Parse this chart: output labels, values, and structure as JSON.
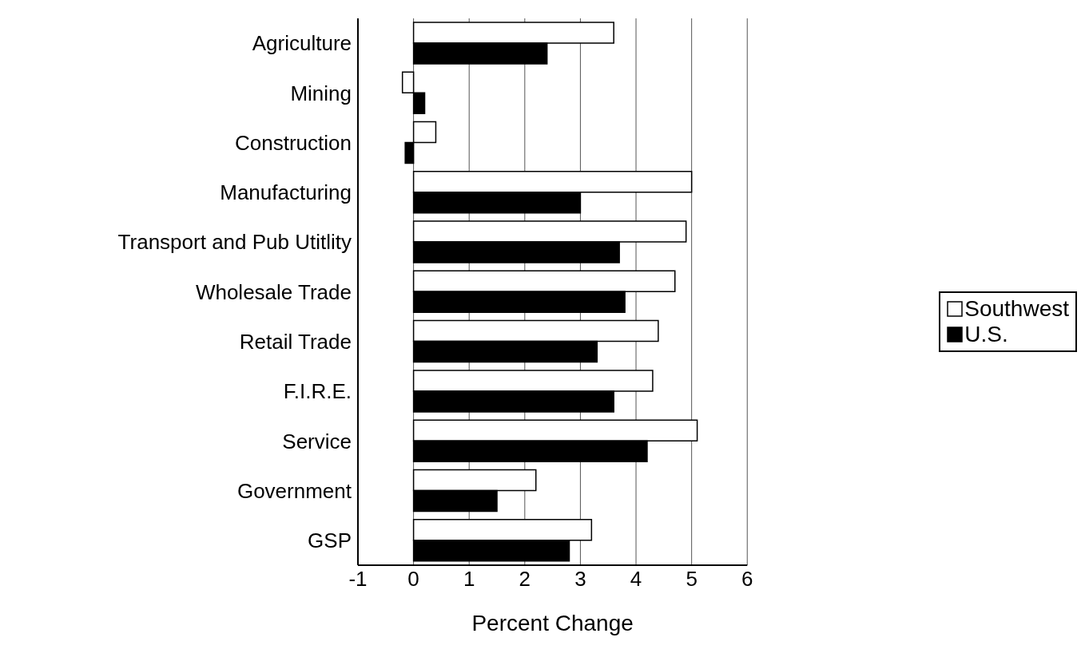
{
  "chart_data": {
    "type": "bar",
    "orientation": "horizontal",
    "xlabel": "Percent Change",
    "categories": [
      "Agriculture",
      "Mining",
      "Construction",
      "Manufacturing",
      "Transport and Pub Utitlity",
      "Wholesale Trade",
      "Retail Trade",
      "F.I.R.E.",
      "Service",
      "Government",
      "GSP"
    ],
    "series": [
      {
        "name": "Southwest",
        "color": "#ffffff",
        "values": [
          3.6,
          -0.2,
          0.4,
          5.0,
          4.9,
          4.7,
          4.4,
          4.3,
          5.1,
          2.2,
          3.2
        ]
      },
      {
        "name": "U.S.",
        "color": "#000000",
        "values": [
          2.4,
          0.2,
          -0.15,
          3.0,
          3.7,
          3.8,
          3.3,
          3.6,
          4.2,
          1.5,
          2.8
        ]
      }
    ],
    "xlim": [
      -1,
      6
    ],
    "xticks": [
      -1,
      0,
      1,
      2,
      3,
      4,
      5,
      6
    ],
    "grid": "x",
    "legend": "right"
  }
}
